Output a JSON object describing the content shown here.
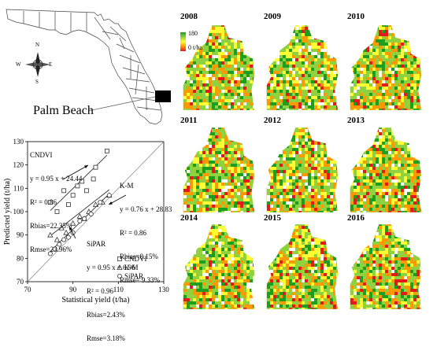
{
  "map_label": "Palm Beach",
  "compass": {
    "n": "N",
    "s": "S",
    "e": "E",
    "w": "W"
  },
  "years": [
    "2008",
    "2009",
    "2010",
    "2011",
    "2012",
    "2013",
    "2014",
    "2015",
    "2016"
  ],
  "legend": {
    "max": "180",
    "min": "0 t/ha",
    "colors": [
      "#1e9e1e",
      "#8fd13f",
      "#ffff33",
      "#ff9900",
      "#e11a1a"
    ]
  },
  "annotations": {
    "cndvi": {
      "name": "CNDVI",
      "eq": "y = 0.95 x + 24.44",
      "r2": "R² = 0.86",
      "rbias": "Rbias=22.35%",
      "rmse": "Rmse=23.96%"
    },
    "km": {
      "name": "K-M",
      "eq": "y = 0.76 x + 28.83",
      "r2": "R² = 0.86",
      "rbias": "Rbias=8.15%",
      "rmse": "Rmse= 9.33%"
    },
    "sipar": {
      "name": "SiPAR",
      "eq": "y = 0.95 x + 6.96",
      "r2": "R² = 0.96",
      "rbias": "Rbias=2.43%",
      "rmse": "Rmse=3.18%"
    }
  },
  "chart_data": {
    "type": "scatter",
    "xlabel": "Statistical yield (t/ha)",
    "ylabel": "Predicted yield (t/ha)",
    "xlim": [
      70,
      130
    ],
    "ylim": [
      70,
      130
    ],
    "xticks": [
      "70",
      "90",
      "110",
      "130"
    ],
    "yticks": [
      "70",
      "80",
      "90",
      "100",
      "110",
      "120",
      "130"
    ],
    "legend_position": "bottom-right",
    "legend": [
      "CNDVI",
      "K-M",
      "SiPAR"
    ],
    "series": [
      {
        "name": "CNDVI",
        "marker": "square",
        "x": [
          80,
          83,
          86,
          88,
          90,
          92,
          94,
          96,
          99,
          100,
          105
        ],
        "y": [
          104,
          100,
          109,
          103,
          107,
          111,
          113,
          109,
          114,
          119,
          126
        ],
        "fit": [
          0.95,
          24.44
        ]
      },
      {
        "name": "K-M",
        "marker": "triangle",
        "x": [
          80,
          83,
          85,
          87,
          90,
          93,
          95,
          97,
          100,
          103,
          106
        ],
        "y": [
          90,
          88,
          93,
          91,
          95,
          98,
          97,
          100,
          103,
          104,
          107
        ],
        "fit": [
          0.76,
          28.83
        ]
      },
      {
        "name": "SiPAR",
        "marker": "circle",
        "x": [
          80,
          82,
          84,
          86,
          88,
          90,
          93,
          95,
          98,
          102,
          106
        ],
        "y": [
          82,
          84,
          86,
          88,
          89,
          91,
          96,
          97,
          99,
          104,
          107
        ],
        "fit": [
          0.95,
          6.96
        ]
      }
    ]
  }
}
